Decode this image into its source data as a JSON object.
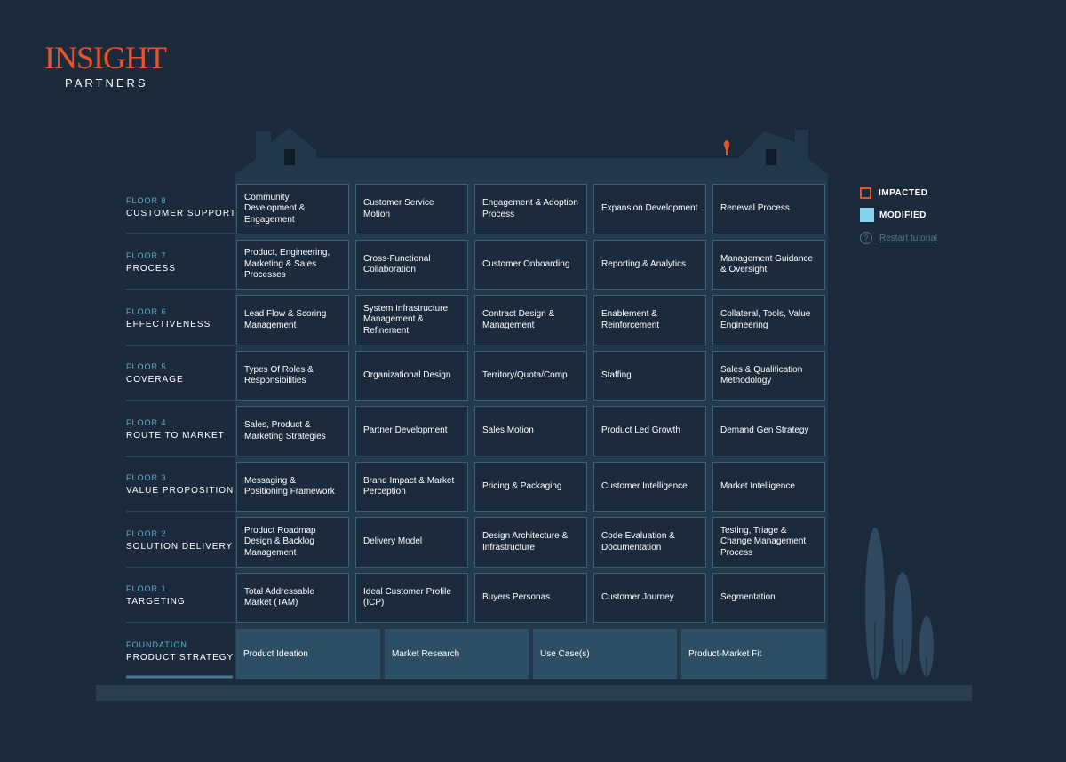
{
  "brand": {
    "name": "INSIGHT",
    "sub": "PARTNERS"
  },
  "legend": {
    "impacted": "IMPACTED",
    "modified": "MODIFIED",
    "restart": "Restart tutorial",
    "help_glyph": "?"
  },
  "colors": {
    "accent": "#e8532a",
    "modified": "#7fd3ec",
    "background": "#1c2b3c",
    "cell_border": "#3e6178",
    "foundation": "#2c4f66"
  },
  "floors": [
    {
      "number": "FLOOR 8",
      "name": "CUSTOMER SUPPORT",
      "items": [
        "Community Development & Engagement",
        "Customer Service Motion",
        "Engagement & Adoption Process",
        "Expansion Development",
        "Renewal Process"
      ]
    },
    {
      "number": "FLOOR 7",
      "name": "PROCESS",
      "items": [
        "Product, Engineering, Marketing & Sales Processes",
        "Cross-Functional Collaboration",
        "Customer Onboarding",
        "Reporting & Analytics",
        "Management Guidance & Oversight"
      ]
    },
    {
      "number": "FLOOR 6",
      "name": "EFFECTIVENESS",
      "items": [
        "Lead Flow & Scoring Management",
        "System Infrastructure Management & Refinement",
        "Contract Design & Management",
        "Enablement & Reinforcement",
        "Collateral, Tools, Value Engineering"
      ]
    },
    {
      "number": "FLOOR 5",
      "name": "COVERAGE",
      "items": [
        "Types Of Roles & Responsibilities",
        "Organizational Design",
        "Territory/Quota/Comp",
        "Staffing",
        "Sales & Qualification Methodology"
      ]
    },
    {
      "number": "FLOOR 4",
      "name": "ROUTE TO MARKET",
      "items": [
        "Sales, Product & Marketing Strategies",
        "Partner Development",
        "Sales Motion",
        "Product Led Growth",
        "Demand Gen Strategy"
      ]
    },
    {
      "number": "FLOOR 3",
      "name": "VALUE PROPOSITION",
      "items": [
        "Messaging & Positioning Framework",
        "Brand Impact & Market Perception",
        "Pricing & Packaging",
        "Customer Intelligence",
        "Market Intelligence"
      ]
    },
    {
      "number": "FLOOR 2",
      "name": "SOLUTION DELIVERY",
      "items": [
        "Product Roadmap Design & Backlog Management",
        "Delivery Model",
        "Design Architecture & Infrastructure",
        "Code Evaluation & Documentation",
        "Testing, Triage & Change Management Process"
      ]
    },
    {
      "number": "FLOOR 1",
      "name": "TARGETING",
      "items": [
        "Total Addressable Market (TAM)",
        "Ideal Customer Profile (ICP)",
        "Buyers Personas",
        "Customer Journey",
        "Segmentation"
      ]
    }
  ],
  "foundation": {
    "number": "FOUNDATION",
    "name": "PRODUCT STRATEGY",
    "items": [
      "Product Ideation",
      "Market Research",
      "Use Case(s)",
      "Product-Market Fit"
    ]
  }
}
